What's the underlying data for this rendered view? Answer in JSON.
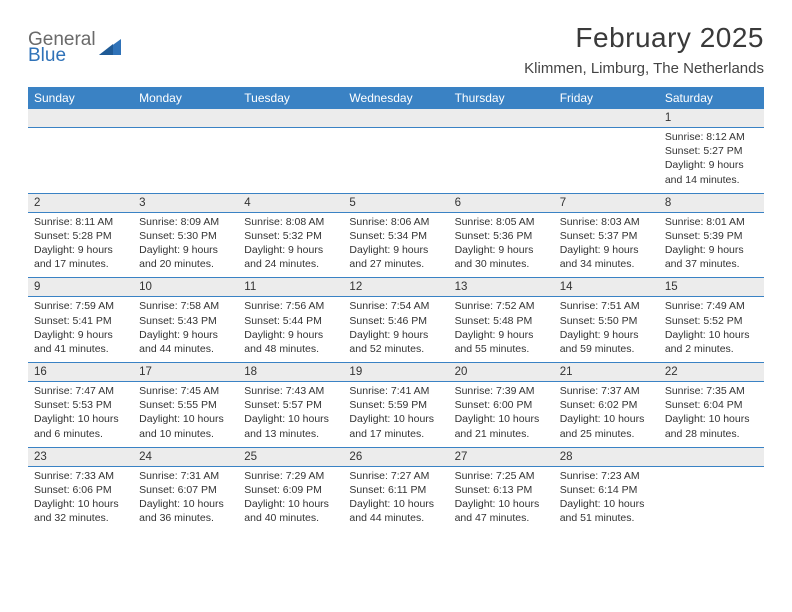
{
  "logo": {
    "word1": "General",
    "word2": "Blue"
  },
  "header": {
    "month_title": "February 2025",
    "location": "Klimmen, Limburg, The Netherlands"
  },
  "colors": {
    "header_bg": "#3a82c4",
    "header_text": "#ffffff",
    "daynum_bg": "#ececec",
    "rule": "#3a82c4",
    "text": "#333333",
    "logo_gray": "#6a6a6a",
    "logo_blue": "#2f72b8",
    "page_bg": "#ffffff"
  },
  "typography": {
    "title_fontsize": 28,
    "location_fontsize": 15,
    "weekday_fontsize": 12,
    "daynum_fontsize": 11.5,
    "detail_fontsize": 10.5,
    "font_family": "Arial"
  },
  "calendar": {
    "weekdays": [
      "Sunday",
      "Monday",
      "Tuesday",
      "Wednesday",
      "Thursday",
      "Friday",
      "Saturday"
    ],
    "weeks": [
      [
        null,
        null,
        null,
        null,
        null,
        null,
        {
          "day": "1",
          "sunrise": "Sunrise: 8:12 AM",
          "sunset": "Sunset: 5:27 PM",
          "daylight1": "Daylight: 9 hours",
          "daylight2": "and 14 minutes."
        }
      ],
      [
        {
          "day": "2",
          "sunrise": "Sunrise: 8:11 AM",
          "sunset": "Sunset: 5:28 PM",
          "daylight1": "Daylight: 9 hours",
          "daylight2": "and 17 minutes."
        },
        {
          "day": "3",
          "sunrise": "Sunrise: 8:09 AM",
          "sunset": "Sunset: 5:30 PM",
          "daylight1": "Daylight: 9 hours",
          "daylight2": "and 20 minutes."
        },
        {
          "day": "4",
          "sunrise": "Sunrise: 8:08 AM",
          "sunset": "Sunset: 5:32 PM",
          "daylight1": "Daylight: 9 hours",
          "daylight2": "and 24 minutes."
        },
        {
          "day": "5",
          "sunrise": "Sunrise: 8:06 AM",
          "sunset": "Sunset: 5:34 PM",
          "daylight1": "Daylight: 9 hours",
          "daylight2": "and 27 minutes."
        },
        {
          "day": "6",
          "sunrise": "Sunrise: 8:05 AM",
          "sunset": "Sunset: 5:36 PM",
          "daylight1": "Daylight: 9 hours",
          "daylight2": "and 30 minutes."
        },
        {
          "day": "7",
          "sunrise": "Sunrise: 8:03 AM",
          "sunset": "Sunset: 5:37 PM",
          "daylight1": "Daylight: 9 hours",
          "daylight2": "and 34 minutes."
        },
        {
          "day": "8",
          "sunrise": "Sunrise: 8:01 AM",
          "sunset": "Sunset: 5:39 PM",
          "daylight1": "Daylight: 9 hours",
          "daylight2": "and 37 minutes."
        }
      ],
      [
        {
          "day": "9",
          "sunrise": "Sunrise: 7:59 AM",
          "sunset": "Sunset: 5:41 PM",
          "daylight1": "Daylight: 9 hours",
          "daylight2": "and 41 minutes."
        },
        {
          "day": "10",
          "sunrise": "Sunrise: 7:58 AM",
          "sunset": "Sunset: 5:43 PM",
          "daylight1": "Daylight: 9 hours",
          "daylight2": "and 44 minutes."
        },
        {
          "day": "11",
          "sunrise": "Sunrise: 7:56 AM",
          "sunset": "Sunset: 5:44 PM",
          "daylight1": "Daylight: 9 hours",
          "daylight2": "and 48 minutes."
        },
        {
          "day": "12",
          "sunrise": "Sunrise: 7:54 AM",
          "sunset": "Sunset: 5:46 PM",
          "daylight1": "Daylight: 9 hours",
          "daylight2": "and 52 minutes."
        },
        {
          "day": "13",
          "sunrise": "Sunrise: 7:52 AM",
          "sunset": "Sunset: 5:48 PM",
          "daylight1": "Daylight: 9 hours",
          "daylight2": "and 55 minutes."
        },
        {
          "day": "14",
          "sunrise": "Sunrise: 7:51 AM",
          "sunset": "Sunset: 5:50 PM",
          "daylight1": "Daylight: 9 hours",
          "daylight2": "and 59 minutes."
        },
        {
          "day": "15",
          "sunrise": "Sunrise: 7:49 AM",
          "sunset": "Sunset: 5:52 PM",
          "daylight1": "Daylight: 10 hours",
          "daylight2": "and 2 minutes."
        }
      ],
      [
        {
          "day": "16",
          "sunrise": "Sunrise: 7:47 AM",
          "sunset": "Sunset: 5:53 PM",
          "daylight1": "Daylight: 10 hours",
          "daylight2": "and 6 minutes."
        },
        {
          "day": "17",
          "sunrise": "Sunrise: 7:45 AM",
          "sunset": "Sunset: 5:55 PM",
          "daylight1": "Daylight: 10 hours",
          "daylight2": "and 10 minutes."
        },
        {
          "day": "18",
          "sunrise": "Sunrise: 7:43 AM",
          "sunset": "Sunset: 5:57 PM",
          "daylight1": "Daylight: 10 hours",
          "daylight2": "and 13 minutes."
        },
        {
          "day": "19",
          "sunrise": "Sunrise: 7:41 AM",
          "sunset": "Sunset: 5:59 PM",
          "daylight1": "Daylight: 10 hours",
          "daylight2": "and 17 minutes."
        },
        {
          "day": "20",
          "sunrise": "Sunrise: 7:39 AM",
          "sunset": "Sunset: 6:00 PM",
          "daylight1": "Daylight: 10 hours",
          "daylight2": "and 21 minutes."
        },
        {
          "day": "21",
          "sunrise": "Sunrise: 7:37 AM",
          "sunset": "Sunset: 6:02 PM",
          "daylight1": "Daylight: 10 hours",
          "daylight2": "and 25 minutes."
        },
        {
          "day": "22",
          "sunrise": "Sunrise: 7:35 AM",
          "sunset": "Sunset: 6:04 PM",
          "daylight1": "Daylight: 10 hours",
          "daylight2": "and 28 minutes."
        }
      ],
      [
        {
          "day": "23",
          "sunrise": "Sunrise: 7:33 AM",
          "sunset": "Sunset: 6:06 PM",
          "daylight1": "Daylight: 10 hours",
          "daylight2": "and 32 minutes."
        },
        {
          "day": "24",
          "sunrise": "Sunrise: 7:31 AM",
          "sunset": "Sunset: 6:07 PM",
          "daylight1": "Daylight: 10 hours",
          "daylight2": "and 36 minutes."
        },
        {
          "day": "25",
          "sunrise": "Sunrise: 7:29 AM",
          "sunset": "Sunset: 6:09 PM",
          "daylight1": "Daylight: 10 hours",
          "daylight2": "and 40 minutes."
        },
        {
          "day": "26",
          "sunrise": "Sunrise: 7:27 AM",
          "sunset": "Sunset: 6:11 PM",
          "daylight1": "Daylight: 10 hours",
          "daylight2": "and 44 minutes."
        },
        {
          "day": "27",
          "sunrise": "Sunrise: 7:25 AM",
          "sunset": "Sunset: 6:13 PM",
          "daylight1": "Daylight: 10 hours",
          "daylight2": "and 47 minutes."
        },
        {
          "day": "28",
          "sunrise": "Sunrise: 7:23 AM",
          "sunset": "Sunset: 6:14 PM",
          "daylight1": "Daylight: 10 hours",
          "daylight2": "and 51 minutes."
        },
        null
      ]
    ]
  }
}
